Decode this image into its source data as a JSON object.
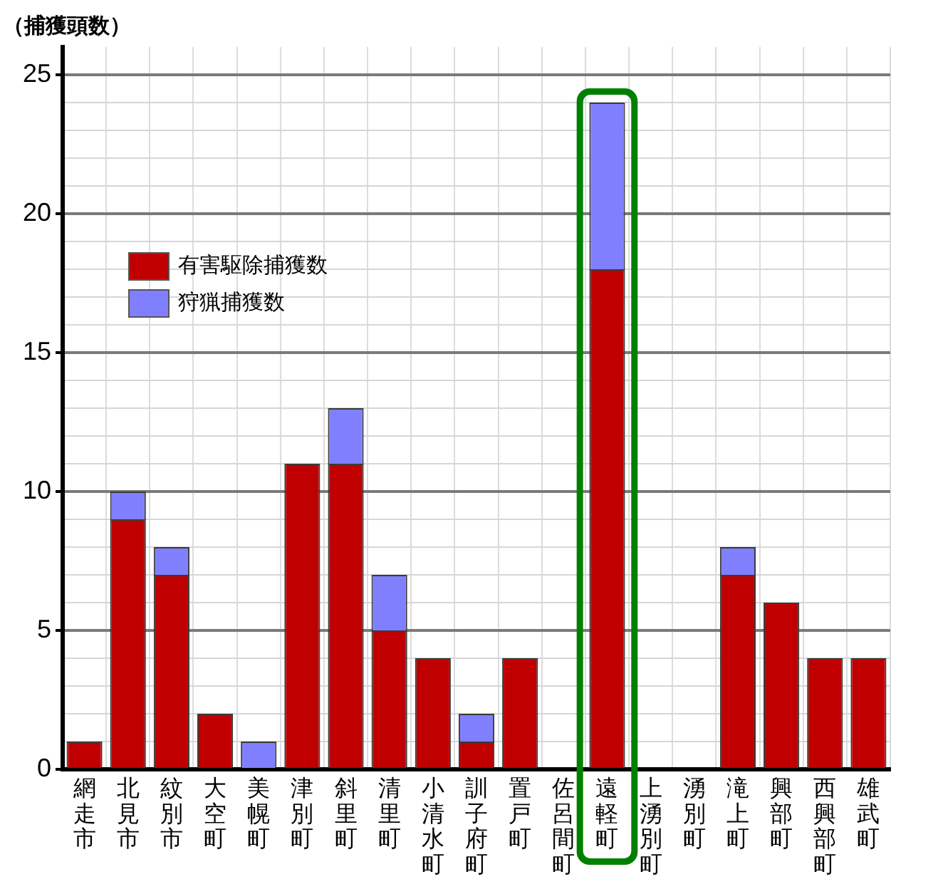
{
  "chart_data": {
    "type": "bar",
    "stacked": true,
    "ylabel": "（捕獲頭数）",
    "categories": [
      "網走市",
      "北見市",
      "紋別市",
      "大空町",
      "美幌町",
      "津別町",
      "斜里町",
      "清里町",
      "小清水町",
      "訓子府町",
      "置戸町",
      "佐呂間町",
      "遠軽町",
      "上湧別町",
      "湧別町",
      "滝上町",
      "興部町",
      "西興部町",
      "雄武町"
    ],
    "series": [
      {
        "name": "有害駆除捕獲数",
        "color": "#c00000",
        "values": [
          1,
          9,
          7,
          2,
          0,
          11,
          11,
          5,
          4,
          1,
          4,
          0,
          18,
          0,
          0,
          7,
          6,
          4,
          4
        ]
      },
      {
        "name": "狩猟捕獲数",
        "color": "#8080ff",
        "values": [
          0,
          1,
          1,
          0,
          1,
          0,
          2,
          2,
          0,
          1,
          0,
          0,
          6,
          0,
          0,
          1,
          0,
          0,
          0
        ]
      }
    ],
    "ylim": [
      0,
      26
    ],
    "yticks": [
      0,
      {
        "value": 1,
        "label": null
      },
      {
        "value": 2,
        "label": null
      },
      {
        "value": 3,
        "label": null
      },
      {
        "value": 4,
        "label": null
      },
      5,
      {
        "value": 6,
        "label": null
      },
      {
        "value": 7,
        "label": null
      },
      {
        "value": 8,
        "label": null
      },
      {
        "value": 9,
        "label": null
      },
      10,
      {
        "value": 11,
        "label": null
      },
      {
        "value": 12,
        "label": null
      },
      {
        "value": 13,
        "label": null
      },
      {
        "value": 14,
        "label": null
      },
      15,
      {
        "value": 16,
        "label": null
      },
      {
        "value": 17,
        "label": null
      },
      {
        "value": 18,
        "label": null
      },
      {
        "value": 19,
        "label": null
      },
      20,
      {
        "value": 21,
        "label": null
      },
      {
        "value": 22,
        "label": null
      },
      {
        "value": 23,
        "label": null
      },
      {
        "value": 24,
        "label": null
      },
      25
    ],
    "grid": true,
    "legend": "top left",
    "bands": [
      {
        "axis": "x",
        "from": "遠軽町",
        "to": "遠軽町",
        "color": "#008000"
      }
    ]
  }
}
